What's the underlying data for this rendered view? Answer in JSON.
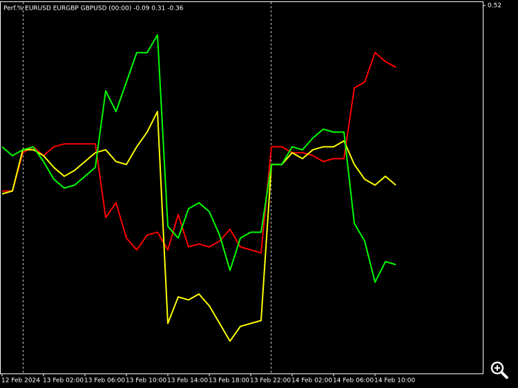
{
  "chart_data": {
    "type": "line",
    "title": "Perf.% EURUSD EURGBP GBPUSD (00:00) -0.09 0.31 -0.36",
    "categories": [
      "12 Feb 2024",
      null,
      null,
      null,
      "13 Feb 02:00",
      null,
      null,
      null,
      "13 Feb 06:00",
      null,
      null,
      null,
      "13 Feb 10:00",
      null,
      null,
      null,
      "13 Feb 14:00",
      null,
      null,
      null,
      "13 Feb 18:00",
      null,
      null,
      null,
      "13 Feb 22:00",
      null,
      null,
      null,
      "14 Feb 02:00",
      null,
      null,
      null,
      "14 Feb 06:00",
      null,
      null,
      null,
      "14 Feb 10:00",
      null,
      null
    ],
    "series": [
      {
        "color": "#ff0000",
        "values": [
          -0.11,
          -0.11,
          0.02,
          0.04,
          0.01,
          0.04,
          0.05,
          0.05,
          0.05,
          0.05,
          -0.2,
          -0.15,
          -0.27,
          -0.31,
          -0.26,
          -0.25,
          -0.31,
          -0.19,
          -0.3,
          -0.29,
          -0.3,
          -0.28,
          -0.24,
          -0.3,
          -0.31,
          -0.32,
          0.04,
          0.04,
          0.02,
          0.02,
          0.01,
          -0.01,
          0.0,
          0.0,
          0.24,
          0.26,
          0.36,
          0.33,
          0.31
        ]
      },
      {
        "color": "#ffff00",
        "values": [
          -0.12,
          -0.11,
          0.03,
          0.03,
          0.01,
          -0.03,
          -0.06,
          -0.04,
          -0.01,
          0.02,
          0.03,
          -0.01,
          -0.02,
          0.04,
          0.09,
          0.16,
          -0.56,
          -0.47,
          -0.48,
          -0.46,
          -0.5,
          -0.56,
          -0.62,
          -0.57,
          -0.56,
          -0.55,
          -0.02,
          -0.02,
          0.02,
          0.0,
          0.03,
          0.04,
          0.04,
          0.06,
          -0.02,
          -0.07,
          -0.09,
          -0.06,
          -0.09
        ]
      },
      {
        "color": "#00ff00",
        "values": [
          0.04,
          0.01,
          0.03,
          0.04,
          -0.01,
          -0.07,
          -0.1,
          -0.09,
          -0.06,
          -0.03,
          0.23,
          0.16,
          0.26,
          0.36,
          0.36,
          0.42,
          -0.23,
          -0.27,
          -0.17,
          -0.15,
          -0.18,
          -0.26,
          -0.38,
          -0.27,
          -0.25,
          -0.25,
          -0.02,
          -0.02,
          0.04,
          0.03,
          0.07,
          0.1,
          0.09,
          0.09,
          -0.22,
          -0.28,
          -0.42,
          -0.35,
          -0.36
        ]
      }
    ],
    "ylim": [
      -0.73,
      0.52
    ],
    "yticks": [
      0.52
    ]
  }
}
